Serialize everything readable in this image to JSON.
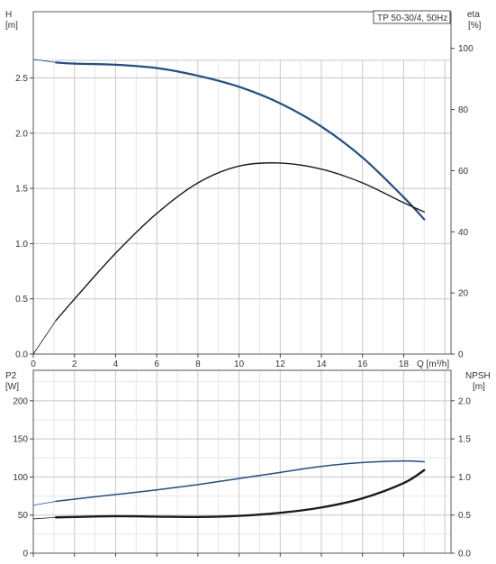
{
  "colors": {
    "head_curve": "#1f4e8c",
    "eta_curve": "#1a1a1a",
    "p2_curve": "#1a1a1a",
    "npsh_curve": "#1f4e8c",
    "grid": "#c8c8c8",
    "frame": "#555555"
  },
  "chart_data": [
    {
      "type": "line",
      "title": "TP 50-30/4, 50Hz",
      "xlabel": "Q [m³/h]",
      "ylabel_left": "H\n[m]",
      "ylabel_right": "eta\n[%]",
      "ylabel_left_name": "H",
      "ylabel_left_unit": "[m]",
      "ylabel_right_name": "eta",
      "ylabel_right_unit": "[%]",
      "xlim": [
        0,
        20.3
      ],
      "ylim_left": [
        0,
        3.1
      ],
      "ylim_right": [
        0,
        112
      ],
      "x_ticks": [
        "0",
        "2",
        "4",
        "6",
        "8",
        "10",
        "12",
        "14",
        "16",
        "18"
      ],
      "y_left_ticks": [
        "0.0",
        "0.5",
        "1.0",
        "1.5",
        "2.0",
        "2.5"
      ],
      "y_right_ticks": [
        "0",
        "20",
        "40",
        "60",
        "80",
        "100"
      ],
      "grid": true,
      "legend": "top-right",
      "series": [
        {
          "name": "H",
          "axis": "left",
          "x": [
            0,
            1.1,
            2,
            4,
            6,
            8,
            10,
            12,
            14,
            16,
            18,
            19
          ],
          "values": [
            2.67,
            2.64,
            2.63,
            2.62,
            2.59,
            2.52,
            2.42,
            2.27,
            2.06,
            1.78,
            1.42,
            1.22
          ],
          "extrapolated_below_x": 1.1
        },
        {
          "name": "eta",
          "axis": "right",
          "x": [
            0,
            1.1,
            2,
            4,
            6,
            8,
            10,
            12,
            14,
            16,
            18,
            19
          ],
          "values": [
            0,
            11,
            18,
            33,
            46,
            56,
            61.5,
            62.5,
            60.5,
            56,
            49.5,
            46.5
          ],
          "extrapolated_below_x": 1.1
        }
      ]
    },
    {
      "type": "line",
      "title": "",
      "xlabel": "",
      "ylabel_left": "P2\n[W]",
      "ylabel_right": "NPSH\n[m]",
      "ylabel_left_name": "P2",
      "ylabel_left_unit": "[W]",
      "ylabel_right_name": "NPSH",
      "ylabel_right_unit": "[m]",
      "xlim": [
        0,
        20.3
      ],
      "ylim_left": [
        0,
        240
      ],
      "ylim_right": [
        0,
        2.4
      ],
      "y_left_ticks": [
        "0",
        "50",
        "100",
        "150",
        "200"
      ],
      "y_right_ticks": [
        "0.0",
        "0.5",
        "1.0",
        "1.5",
        "2.0"
      ],
      "grid": true,
      "series": [
        {
          "name": "P2",
          "axis": "left",
          "x": [
            0,
            1.1,
            2,
            4,
            6,
            8,
            10,
            12,
            14,
            16,
            18,
            19
          ],
          "values": [
            45,
            47,
            47.5,
            48.5,
            48,
            47.5,
            49,
            53,
            60,
            72,
            92,
            109
          ],
          "extrapolated_below_x": 1.1
        },
        {
          "name": "NPSH",
          "axis": "right",
          "x": [
            0,
            1.1,
            2,
            4,
            6,
            8,
            10,
            12,
            14,
            16,
            18,
            19
          ],
          "values": [
            0.63,
            0.68,
            0.71,
            0.77,
            0.83,
            0.9,
            0.98,
            1.06,
            1.14,
            1.19,
            1.21,
            1.2
          ],
          "extrapolated_below_x": 1.1
        }
      ]
    }
  ]
}
